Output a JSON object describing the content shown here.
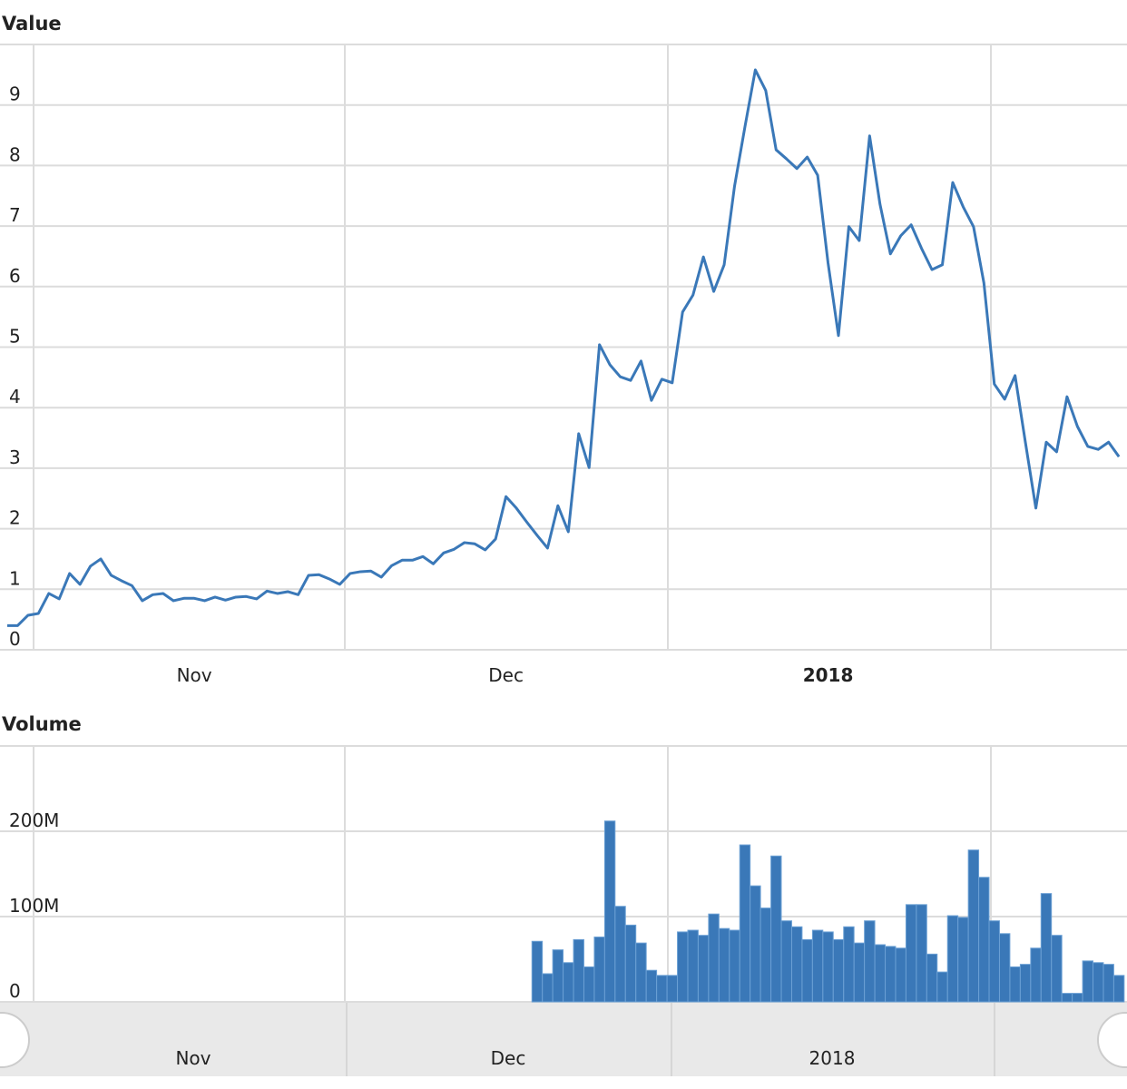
{
  "chart_data": [
    {
      "type": "line",
      "title": "Value",
      "color": "#3a78b8",
      "ylim": [
        0,
        10
      ],
      "yticks": [
        0,
        1,
        2,
        3,
        4,
        5,
        6,
        7,
        8,
        9
      ],
      "grid": true,
      "categories": [
        null,
        null,
        null,
        null,
        null,
        null,
        null,
        null,
        null,
        null,
        null,
        null,
        null,
        null,
        null,
        null,
        null,
        null,
        "Nov",
        null,
        null,
        null,
        null,
        null,
        null,
        null,
        null,
        null,
        null,
        null,
        null,
        null,
        null,
        null,
        null,
        null,
        null,
        null,
        null,
        null,
        null,
        null,
        null,
        null,
        null,
        null,
        null,
        null,
        "Dec",
        null,
        null,
        null,
        null,
        null,
        null,
        null,
        null,
        null,
        null,
        null,
        null,
        null,
        null,
        null,
        null,
        null,
        null,
        null,
        null,
        null,
        null,
        null,
        null,
        null,
        null,
        null,
        null,
        null,
        null,
        "2018",
        null,
        null,
        null,
        null,
        null,
        null,
        null,
        null,
        null,
        null,
        null,
        null,
        null,
        null,
        null,
        null,
        null,
        null,
        null,
        null,
        null,
        null,
        null,
        null,
        null,
        null,
        null,
        null
      ],
      "values": [
        0.4,
        0.4,
        0.57,
        0.6,
        0.93,
        0.84,
        1.26,
        1.08,
        1.38,
        1.5,
        1.23,
        1.14,
        1.06,
        0.81,
        0.91,
        0.93,
        0.81,
        0.85,
        0.85,
        0.81,
        0.87,
        0.82,
        0.87,
        0.88,
        0.84,
        0.97,
        0.93,
        0.96,
        0.91,
        1.23,
        1.24,
        1.17,
        1.08,
        1.26,
        1.29,
        1.3,
        1.2,
        1.39,
        1.48,
        1.48,
        1.54,
        1.42,
        1.6,
        1.66,
        1.77,
        1.75,
        1.65,
        1.83,
        2.53,
        2.34,
        2.11,
        1.89,
        1.68,
        2.38,
        1.95,
        3.57,
        3.01,
        5.04,
        4.71,
        4.51,
        4.45,
        4.77,
        4.12,
        4.47,
        4.41,
        5.58,
        5.86,
        6.49,
        5.92,
        6.36,
        7.66,
        8.64,
        9.58,
        9.24,
        8.26,
        8.11,
        7.95,
        8.14,
        7.84,
        6.39,
        5.19,
        6.99,
        6.76,
        8.49,
        7.36,
        6.54,
        6.84,
        7.02,
        6.63,
        6.28,
        6.36,
        7.72,
        7.32,
        6.99,
        6.06,
        4.39,
        4.14,
        4.53,
        3.42,
        2.34,
        3.43,
        3.27,
        4.18,
        3.69,
        3.36,
        3.31,
        3.43,
        3.19
      ]
    },
    {
      "type": "bar",
      "title": "Volume",
      "color": "#3a78b8",
      "ylim": [
        0,
        300000000
      ],
      "yticks": [
        0,
        {
          "value": 100000000,
          "label": "100M"
        },
        {
          "value": 200000000,
          "label": "200M"
        }
      ],
      "grid": true,
      "values": [
        0,
        0,
        0,
        0,
        0,
        0,
        0,
        0,
        0,
        0,
        0,
        0,
        0,
        0,
        0,
        0,
        0,
        0,
        0,
        0,
        0,
        0,
        0,
        0,
        0,
        0,
        0,
        0,
        0,
        0,
        0,
        0,
        0,
        0,
        0,
        0,
        0,
        0,
        0,
        0,
        0,
        0,
        0,
        0,
        0,
        0,
        0,
        0,
        0,
        0,
        0,
        71000000,
        33000000,
        61000000,
        46000000,
        73000000,
        41000000,
        76000000,
        212000000,
        112000000,
        90000000,
        69000000,
        37000000,
        31000000,
        31000000,
        82000000,
        84000000,
        78000000,
        103000000,
        86000000,
        84000000,
        184000000,
        136000000,
        110000000,
        171000000,
        95000000,
        88000000,
        73000000,
        84000000,
        82000000,
        73000000,
        88000000,
        69000000,
        95000000,
        67000000,
        65000000,
        63000000,
        114000000,
        114000000,
        56000000,
        35000000,
        101000000,
        99000000,
        178000000,
        146000000,
        95000000,
        80000000,
        41000000,
        44000000,
        63000000,
        127000000,
        78000000,
        10000000,
        10000000,
        48000000,
        46000000,
        44000000,
        31000000
      ]
    }
  ],
  "navigator": {
    "labels": [
      "Nov",
      "Dec",
      "2018"
    ]
  }
}
